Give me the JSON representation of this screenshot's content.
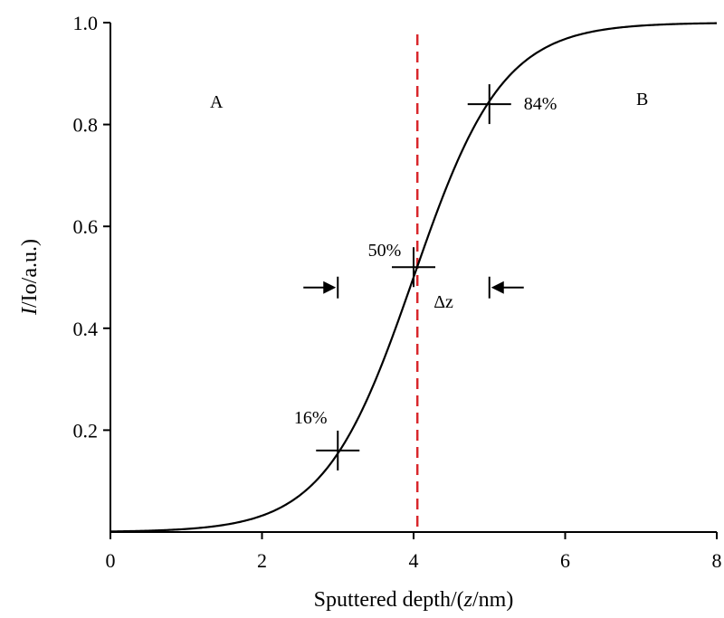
{
  "chart_data": {
    "type": "line",
    "title": "",
    "xlabel": {
      "prefix": "Sputtered depth/(",
      "italic": "z",
      "suffix": "/nm)"
    },
    "ylabel": {
      "italic": "I",
      "suffix": "/Io/a.u.)"
    },
    "xlim": [
      0,
      8
    ],
    "ylim": [
      0,
      1.0
    ],
    "x_ticks": [
      0,
      2,
      4,
      6,
      8
    ],
    "x_tick_labels": [
      "0",
      "2",
      "4",
      "6",
      "8"
    ],
    "y_ticks": [
      0.2,
      0.4,
      0.6,
      0.8,
      1.0
    ],
    "y_tick_labels": [
      "0.2",
      "0.4",
      "0.6",
      "0.8",
      "1.0"
    ],
    "grid": false,
    "series": [
      {
        "curve": "sigmoid (error-function) depth profile",
        "center": 4.0,
        "sigma": 1.0,
        "color": "#000000",
        "x": [
          0,
          0.5,
          1,
          1.5,
          2,
          2.5,
          3,
          3.5,
          4,
          4.5,
          5,
          5.5,
          6,
          6.5,
          7,
          7.5,
          8
        ],
        "y": [
          0.0,
          0.0,
          0.001,
          0.006,
          0.023,
          0.067,
          0.159,
          0.309,
          0.5,
          0.691,
          0.841,
          0.933,
          0.977,
          0.994,
          0.999,
          1.0,
          1.0
        ]
      }
    ],
    "interface_line": {
      "x": 4.05,
      "color": "#d9262b",
      "style": "dashed"
    },
    "markers": [
      {
        "x": 3.0,
        "y": 0.16,
        "label": "16%"
      },
      {
        "x": 4.0,
        "y": 0.52,
        "label": "50%"
      },
      {
        "x": 5.0,
        "y": 0.84,
        "label": "84%"
      }
    ],
    "region_labels": {
      "left": "A",
      "right": "B"
    },
    "width_annotation": {
      "label": "Δz",
      "from_x": 3.0,
      "to_x": 5.0,
      "y": 0.48
    }
  }
}
